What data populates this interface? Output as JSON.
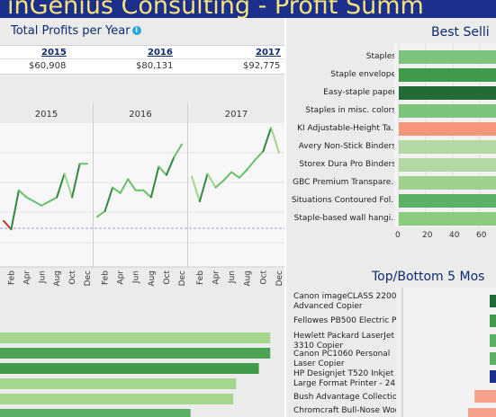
{
  "header": {
    "title": "inGenius Consulting - Profit Summ"
  },
  "profits_per_year": {
    "title": "Total Profits per Year",
    "info_icon": "info-icon",
    "years": [
      "2015",
      "2016",
      "2017"
    ],
    "values": [
      "$60,908",
      "$80,131",
      "$92,775"
    ]
  },
  "monthly_chart": {
    "years": [
      "2015",
      "2016",
      "2017"
    ],
    "month_ticks": [
      "Feb",
      "Apr",
      "Jun",
      "Aug",
      "Oct",
      "Dec"
    ]
  },
  "best_selling": {
    "title": "Best Selli",
    "items": [
      "Staples",
      "Staple envelope",
      "Easy-staple paper",
      "Staples in misc. colors",
      "KI Adjustable-Height Ta..",
      "Avery Non-Stick Binders",
      "Storex Dura Pro Binders",
      "GBC Premium Transpare..",
      "Situations Contoured Fol..",
      "Staple-based wall hangi.."
    ],
    "axis_ticks": [
      "0",
      "20",
      "40",
      "60"
    ]
  },
  "top_bottom": {
    "title": "Top/Bottom 5 Mos",
    "items": [
      [
        "Canon imageCLASS 2200",
        "Advanced Copier"
      ],
      [
        "Fellowes PB500 Electric Pu.."
      ],
      [
        "Hewlett Packard LaserJet",
        "3310 Copier"
      ],
      [
        "Canon PC1060 Personal",
        "Laser Copier"
      ],
      [
        "HP Designjet T520 Inkjet",
        "Large Format Printer - 24\" .."
      ],
      [
        "Bush Advantage Collectio.."
      ],
      [
        "Chromcraft Bull-Nose Wood"
      ]
    ]
  },
  "chart_data": [
    {
      "type": "line",
      "title": "",
      "panels": [
        "2015",
        "2016",
        "2017"
      ],
      "x_ticks": [
        "Feb",
        "Apr",
        "Jun",
        "Aug",
        "Oct",
        "Dec"
      ],
      "series": [
        {
          "panel": "2015",
          "values": [
            0.33,
            0.27,
            0.55,
            0.5,
            0.47,
            0.44,
            0.47,
            0.5,
            0.67,
            0.5,
            0.74,
            0.74
          ]
        },
        {
          "panel": "2016",
          "values": [
            0.36,
            0.4,
            0.57,
            0.53,
            0.63,
            0.55,
            0.55,
            0.5,
            0.72,
            0.66,
            0.79,
            0.88
          ]
        },
        {
          "panel": "2017",
          "values": [
            0.65,
            0.47,
            0.67,
            0.57,
            0.62,
            0.68,
            0.64,
            0.7,
            0.77,
            0.83,
            1.0,
            0.82
          ]
        }
      ]
    },
    {
      "type": "bar",
      "title": "Best Selli",
      "categories": [
        "Staples",
        "Staple envelope",
        "Easy-staple paper",
        "Staples in misc. colors",
        "KI Adjustable-Height Ta..",
        "Avery Non-Stick Binders",
        "Storex Dura Pro Binders",
        "GBC Premium Transpare..",
        "Situations Contoured Fol..",
        "Staple-based wall hangi.."
      ],
      "values": [
        80,
        80,
        78,
        76,
        80,
        80,
        74,
        72,
        66,
        62
      ],
      "colors": [
        "#7cc47c",
        "#3f9a4a",
        "#226b35",
        "#7cc47c",
        "#f4957c",
        "#b4d8a4",
        "#b4d8a4",
        "#9fd08e",
        "#5cb065",
        "#8acb7e"
      ],
      "xlim": [
        0,
        80
      ],
      "x_ticks": [
        "0",
        "20",
        "40",
        "60"
      ]
    },
    {
      "type": "bar",
      "title": "",
      "values": [
        0.95,
        0.95,
        0.91,
        0.83,
        0.82,
        0.67
      ],
      "colors": [
        "#a4d68e",
        "#4aa254",
        "#3f9a4a",
        "#a4d68e",
        "#a4d68e",
        "#5cb065"
      ]
    },
    {
      "type": "bar",
      "title": "Top/Bottom 5 Mos",
      "categories": [
        "Canon imageCLASS 2200 Advanced Copier",
        "Fellowes PB500 Electric Pu..",
        "Hewlett Packard LaserJet 3310 Copier",
        "Canon PC1060 Personal Laser Copier",
        "HP Designjet T520 Inkjet Large Format Printer - 24\" ..",
        "Bush Advantage Collectio..",
        "Chromcraft Bull-Nose Wood"
      ],
      "values": [
        1,
        1,
        1,
        1,
        1,
        -0.7,
        -1
      ],
      "colors": [
        "#1e6b3a",
        "#3f9a4a",
        "#5cb065",
        "#5cb065",
        "#1d2f8c",
        "#f4a08a",
        "#f4a08a"
      ]
    }
  ]
}
